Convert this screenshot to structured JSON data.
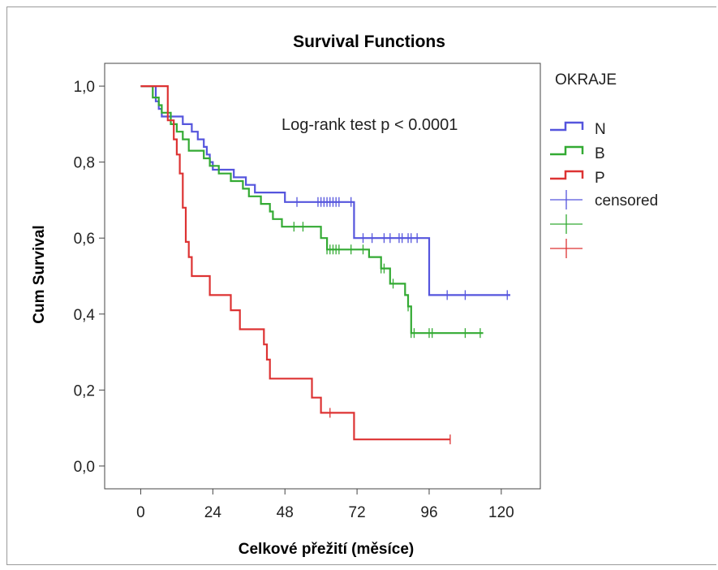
{
  "chart_data": {
    "type": "line",
    "title": "Survival Functions",
    "xlabel": "Celkové přežití (měsíce)",
    "ylabel": "Cum Survival",
    "xlim": [
      -12,
      133
    ],
    "ylim": [
      -0.06,
      1.06
    ],
    "x_ticks": [
      0,
      24,
      48,
      72,
      96,
      120
    ],
    "x_tick_labels": [
      "0",
      "24",
      "48",
      "72",
      "96",
      "120"
    ],
    "y_ticks": [
      0.0,
      0.2,
      0.4,
      0.6,
      0.8,
      1.0
    ],
    "y_tick_labels": [
      "0,0",
      "0,2",
      "0,4",
      "0,6",
      "0,8",
      "1,0"
    ],
    "annotation": "Log-rank test  p < 0.0001",
    "legend": {
      "title": "OKRAJE",
      "position": "right",
      "entries": [
        "N",
        "B",
        "P",
        "censored",
        "",
        ""
      ]
    },
    "series": [
      {
        "name": "N",
        "color": "#5555dd",
        "steps": [
          [
            0,
            1.0
          ],
          [
            5,
            0.96
          ],
          [
            6,
            0.94
          ],
          [
            7,
            0.92
          ],
          [
            14,
            0.9
          ],
          [
            17,
            0.88
          ],
          [
            19,
            0.86
          ],
          [
            21,
            0.84
          ],
          [
            22,
            0.82
          ],
          [
            23,
            0.8
          ],
          [
            24,
            0.78
          ],
          [
            31,
            0.76
          ],
          [
            35,
            0.74
          ],
          [
            38,
            0.72
          ],
          [
            48,
            0.695
          ],
          [
            71,
            0.6
          ],
          [
            96,
            0.45
          ],
          [
            123,
            0.45
          ]
        ],
        "censored": [
          52,
          59,
          60,
          61,
          62,
          63,
          64,
          65,
          66,
          70,
          74,
          77,
          81,
          83,
          86,
          87,
          89,
          90,
          92,
          102,
          108,
          122
        ]
      },
      {
        "name": "B",
        "color": "#33aa33",
        "steps": [
          [
            0,
            1.0
          ],
          [
            4,
            0.97
          ],
          [
            6,
            0.95
          ],
          [
            7,
            0.93
          ],
          [
            10,
            0.9
          ],
          [
            12,
            0.88
          ],
          [
            14,
            0.86
          ],
          [
            16,
            0.83
          ],
          [
            21,
            0.81
          ],
          [
            23,
            0.79
          ],
          [
            26,
            0.77
          ],
          [
            30,
            0.75
          ],
          [
            34,
            0.73
          ],
          [
            36,
            0.71
          ],
          [
            40,
            0.69
          ],
          [
            43,
            0.67
          ],
          [
            44,
            0.65
          ],
          [
            47,
            0.63
          ],
          [
            60,
            0.6
          ],
          [
            62,
            0.57
          ],
          [
            76,
            0.55
          ],
          [
            80,
            0.52
          ],
          [
            83,
            0.48
          ],
          [
            88,
            0.45
          ],
          [
            89,
            0.42
          ],
          [
            90,
            0.35
          ],
          [
            114,
            0.35
          ]
        ],
        "censored": [
          51,
          54,
          62,
          63,
          64,
          65,
          66,
          70,
          74,
          80,
          81,
          84,
          89,
          90,
          91,
          96,
          97,
          108,
          113
        ]
      },
      {
        "name": "P",
        "color": "#dd3333",
        "steps": [
          [
            0,
            1.0
          ],
          [
            9,
            0.91
          ],
          [
            11,
            0.86
          ],
          [
            12,
            0.82
          ],
          [
            13,
            0.77
          ],
          [
            14,
            0.68
          ],
          [
            15,
            0.59
          ],
          [
            16,
            0.55
          ],
          [
            17,
            0.5
          ],
          [
            21,
            0.5
          ],
          [
            23,
            0.45
          ],
          [
            30,
            0.41
          ],
          [
            33,
            0.36
          ],
          [
            41,
            0.32
          ],
          [
            42,
            0.28
          ],
          [
            43,
            0.23
          ],
          [
            53,
            0.23
          ],
          [
            57,
            0.18
          ],
          [
            60,
            0.14
          ],
          [
            71,
            0.07
          ],
          [
            103,
            0.07
          ]
        ],
        "censored": [
          63,
          103
        ]
      }
    ]
  }
}
